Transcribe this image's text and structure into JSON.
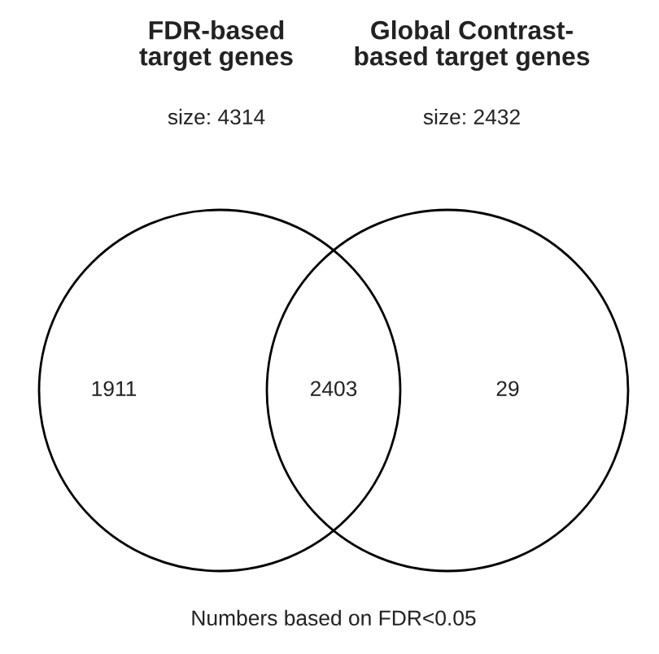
{
  "chart_data": {
    "type": "other",
    "categories": [
      null,
      null,
      null
    ],
    "values": [
      1911,
      2403,
      29
    ],
    "data_labels": true,
    "annotations": [
      "FDR-based\ntarget genes",
      "size: 4314",
      "Global Contrast-\nbased target genes",
      "size: 2432",
      "Numbers based on FDR<0.05"
    ]
  }
}
